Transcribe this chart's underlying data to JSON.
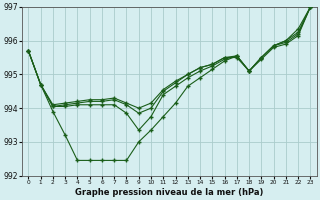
{
  "title": "Graphe pression niveau de la mer (hPa)",
  "bg_color": "#d6eef0",
  "grid_color": "#aacccc",
  "line_color": "#1a5e1a",
  "series": [
    {
      "x": [
        0,
        1,
        2,
        3,
        4,
        5,
        6,
        7,
        8,
        9,
        10,
        11,
        12,
        13,
        14,
        15,
        16,
        17,
        18,
        19,
        20,
        21,
        22,
        23
      ],
      "y": [
        995.7,
        994.7,
        993.9,
        993.2,
        992.45,
        992.45,
        992.45,
        992.45,
        992.45,
        993.0,
        993.35,
        993.75,
        994.15,
        994.65,
        994.9,
        995.15,
        995.4,
        995.55,
        995.1,
        995.5,
        995.85,
        996.0,
        996.35,
        997.0
      ]
    },
    {
      "x": [
        0,
        1,
        2,
        3,
        4,
        5,
        6,
        7,
        8,
        9,
        10,
        11,
        12,
        13,
        14,
        15,
        16,
        17,
        18,
        19,
        20,
        21,
        22,
        23
      ],
      "y": [
        995.7,
        994.7,
        994.05,
        994.05,
        994.1,
        994.1,
        994.1,
        994.1,
        993.85,
        993.35,
        993.75,
        994.4,
        994.65,
        994.9,
        995.1,
        995.25,
        995.45,
        995.55,
        995.1,
        995.5,
        995.85,
        996.0,
        996.25,
        997.0
      ]
    },
    {
      "x": [
        0,
        1,
        2,
        3,
        4,
        5,
        6,
        7,
        8,
        9,
        10,
        11,
        12,
        13,
        14,
        15,
        16,
        17,
        18,
        19,
        20,
        21,
        22,
        23
      ],
      "y": [
        995.7,
        994.7,
        994.05,
        994.1,
        994.15,
        994.2,
        994.2,
        994.25,
        994.1,
        993.85,
        994.0,
        994.5,
        994.75,
        995.0,
        995.2,
        995.3,
        995.5,
        995.55,
        995.1,
        995.5,
        995.85,
        995.95,
        996.2,
        997.0
      ]
    },
    {
      "x": [
        0,
        1,
        2,
        3,
        4,
        5,
        6,
        7,
        8,
        9,
        10,
        11,
        12,
        13,
        14,
        15,
        16,
        17,
        18,
        19,
        20,
        21,
        22,
        23
      ],
      "y": [
        995.7,
        994.7,
        994.1,
        994.15,
        994.2,
        994.25,
        994.25,
        994.3,
        994.15,
        994.0,
        994.15,
        994.55,
        994.8,
        995.0,
        995.2,
        995.3,
        995.5,
        995.5,
        995.1,
        995.45,
        995.8,
        995.9,
        996.15,
        997.0
      ]
    }
  ],
  "xlim": [
    -0.5,
    23.5
  ],
  "ylim": [
    992.0,
    997.0
  ],
  "yticks": [
    992,
    993,
    994,
    995,
    996,
    997
  ],
  "xticks": [
    0,
    1,
    2,
    3,
    4,
    5,
    6,
    7,
    8,
    9,
    10,
    11,
    12,
    13,
    14,
    15,
    16,
    17,
    18,
    19,
    20,
    21,
    22,
    23
  ],
  "xtick_labels": [
    "0",
    "1",
    "2",
    "3",
    "4",
    "5",
    "6",
    "7",
    "8",
    "9",
    "10",
    "11",
    "12",
    "13",
    "14",
    "15",
    "16",
    "17",
    "18",
    "19",
    "20",
    "21",
    "22",
    "23"
  ],
  "figsize": [
    3.2,
    2.0
  ],
  "dpi": 100
}
